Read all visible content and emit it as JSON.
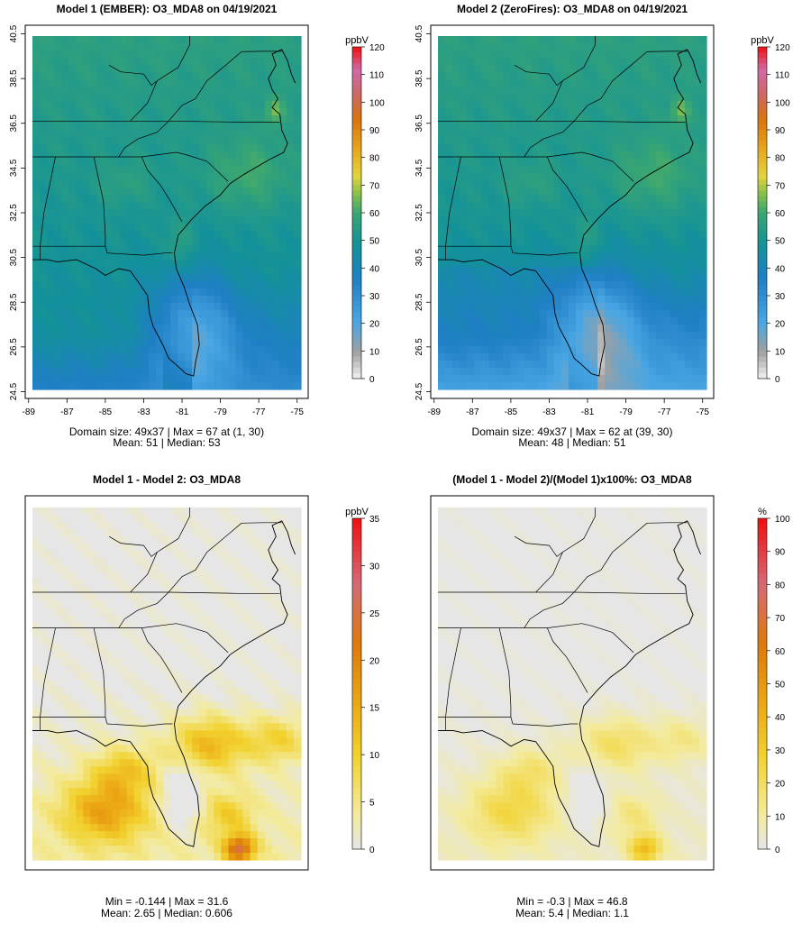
{
  "panels": [
    {
      "title": "Model 1 (EMBER): O3_MDA8 on 04/19/2021",
      "stats_line1": "Domain size: 49x37 | Max = 67 at (1, 30)",
      "stats_line2": "Mean: 51 |  Median: 53",
      "unit": "ppbV",
      "legend_ticks": [
        "0",
        "10",
        "20",
        "30",
        "40",
        "50",
        "60",
        "70",
        "80",
        "90",
        "100",
        "110",
        "120"
      ],
      "lat_ticks": [
        "24.5",
        "26.5",
        "28.5",
        "30.5",
        "32.5",
        "34.5",
        "36.5",
        "38.5",
        "40.5"
      ],
      "lon_ticks": [
        "-89",
        "-87",
        "-85",
        "-83",
        "-81",
        "-79",
        "-77",
        "-75"
      ],
      "field_summary": "ozone mostly 45-60 ppbV, higher off NC/GA coast, low 20-35 over Florida and SE waters"
    },
    {
      "title": "Model 2 (ZeroFires): O3_MDA8 on 04/19/2021",
      "stats_line1": "Domain size: 49x37 | Max = 62 at (39, 30)",
      "stats_line2": "Mean: 48 |  Median: 51",
      "unit": "ppbV",
      "legend_ticks": [
        "0",
        "10",
        "20",
        "30",
        "40",
        "50",
        "60",
        "70",
        "80",
        "90",
        "100",
        "110",
        "120"
      ],
      "lat_ticks": [
        "24.5",
        "26.5",
        "28.5",
        "30.5",
        "32.5",
        "34.5",
        "36.5",
        "38.5",
        "40.5"
      ],
      "lon_ticks": [
        "-89",
        "-87",
        "-85",
        "-83",
        "-81",
        "-79",
        "-77",
        "-75"
      ],
      "field_summary": "similar pattern to Model 1 but lower in the south"
    },
    {
      "title": "Model 1 - Model 2: O3_MDA8",
      "stats_line1": "Min = -0.144 | Max = 31.6",
      "stats_line2": "Mean: 2.65 |  Median: 0.606",
      "unit": "ppbV",
      "legend_ticks": [
        "0",
        "5",
        "10",
        "15",
        "20",
        "25",
        "30",
        "35"
      ],
      "field_summary": "near zero north, up to ~15-30 ppbV difference over Gulf and south of Georgia"
    },
    {
      "title": "(Model 1 - Model 2)/(Model 1)x100%: O3_MDA8",
      "stats_line1": "Min = -0.3 | Max = 46.8",
      "stats_line2": "Mean: 5.4 |  Median: 1.1",
      "unit": "%",
      "legend_ticks": [
        "0",
        "10",
        "20",
        "30",
        "40",
        "50",
        "60",
        "70",
        "80",
        "90",
        "100"
      ],
      "field_summary": "near zero north, 10-40% in the south"
    }
  ],
  "colors": {
    "map_border": "#000000",
    "diff_background": "#e5e5e5"
  }
}
